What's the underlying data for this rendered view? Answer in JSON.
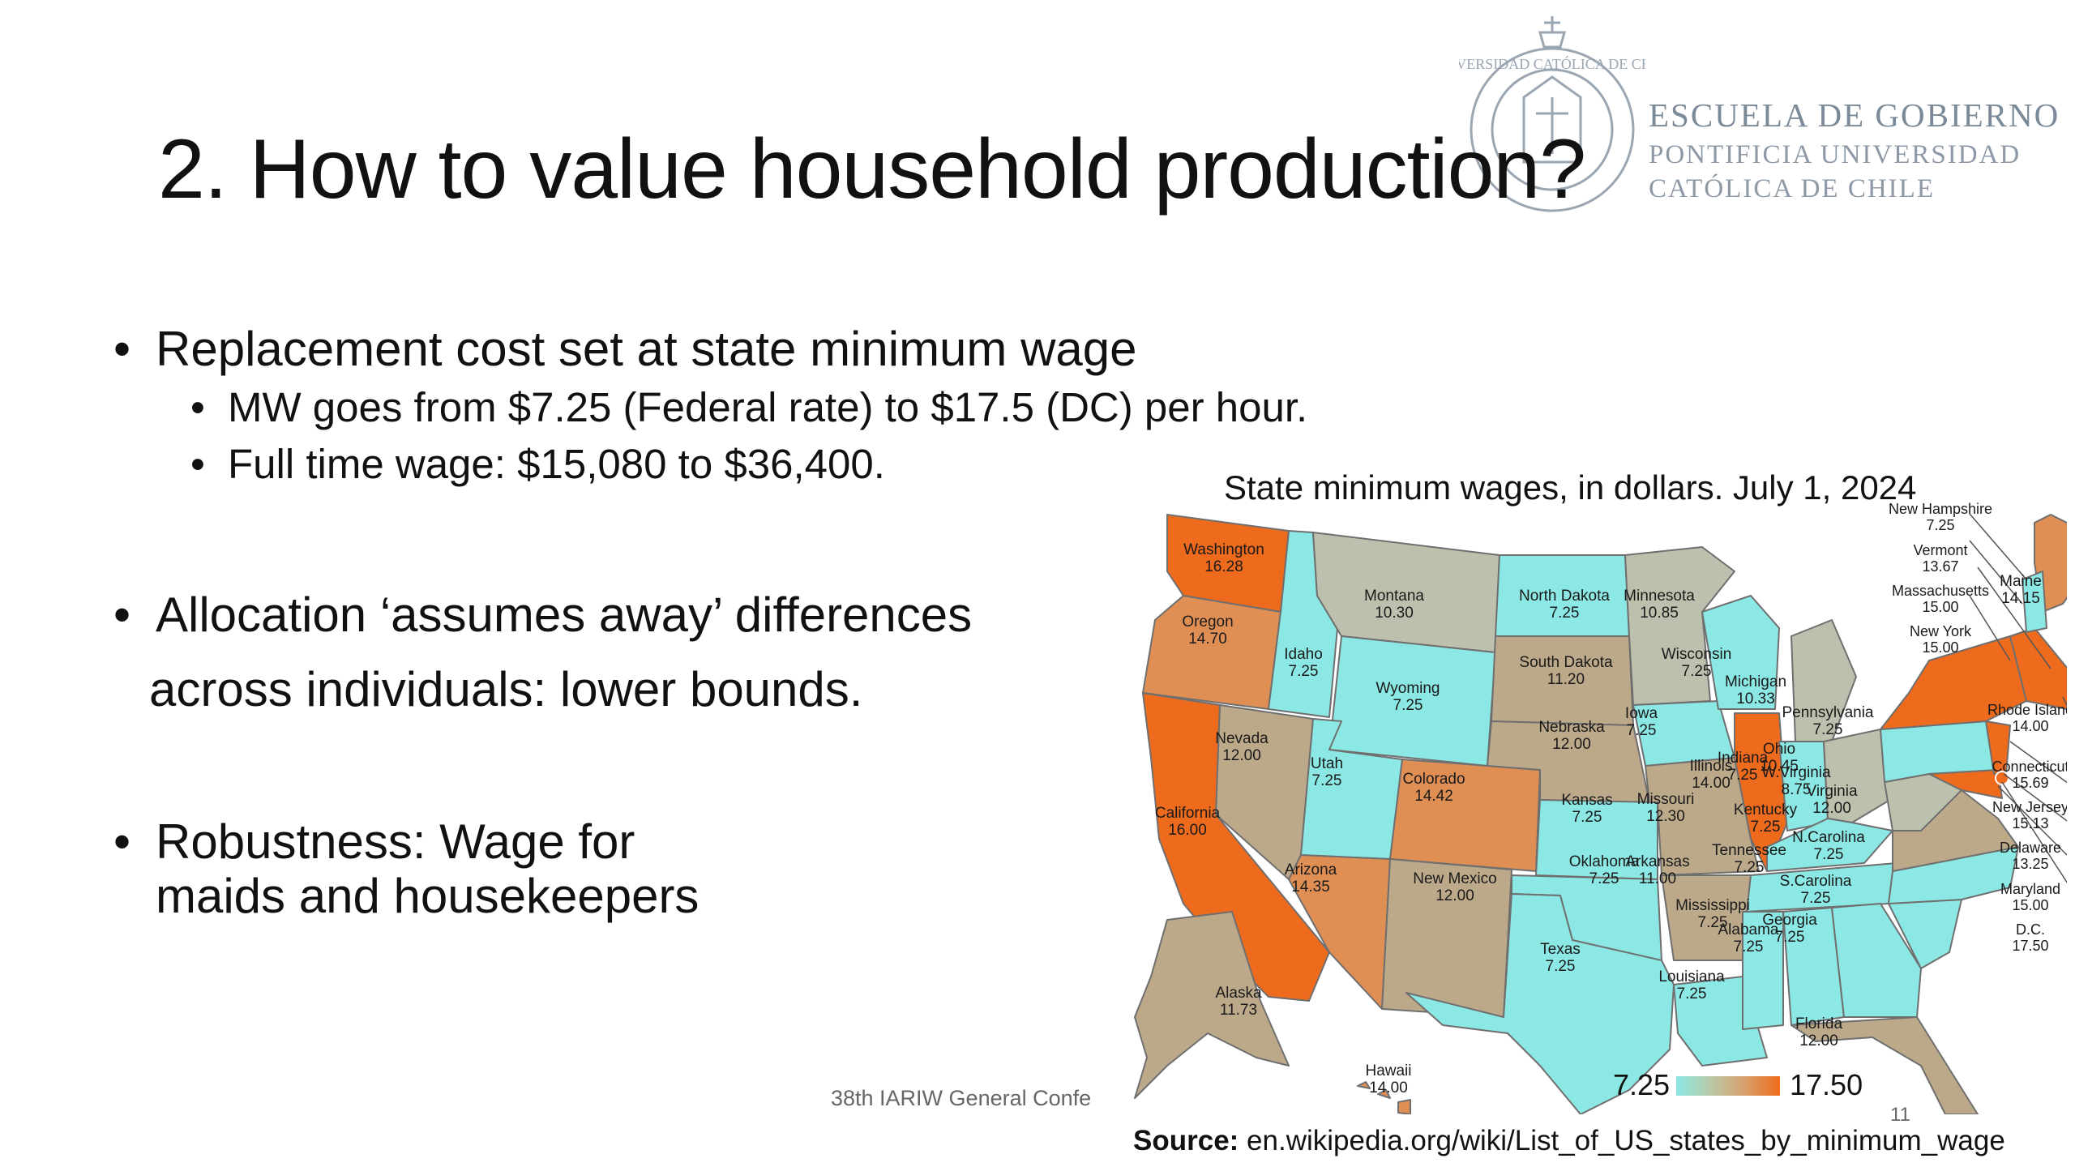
{
  "slide": {
    "title": "2. How to value household production?",
    "logo": {
      "line1": "ESCUELA DE GOBIERNO",
      "line2": "PONTIFICIA UNIVERSIDAD",
      "line3": "CATÓLICA DE CHILE",
      "seal_text": "UNIVERSIDAD CATÓLICA DE CHILE"
    },
    "bullets": [
      {
        "text": "Replacement cost set at state minimum wage",
        "level": 1
      },
      {
        "text": "MW goes from $7.25 (Federal rate) to $17.5 (DC) per hour.",
        "level": 2
      },
      {
        "text": "Full time wage: $15,080 to $36,400.",
        "level": 2
      },
      {
        "text": "Allocation ‘assumes away’ differences",
        "level": 1
      },
      {
        "text": "across individuals: lower bounds.",
        "level": 0
      },
      {
        "text": "Robustness: Wage for",
        "level": 1
      },
      {
        "text": "maids and housekeepers",
        "level": 0
      }
    ],
    "bullet_char": "•",
    "footer": "38th IARIW General Confe",
    "page_number": "11"
  },
  "map": {
    "title": "State minimum wages, in dollars. July 1, 2024",
    "legend": {
      "min": "7.25",
      "max": "17.50"
    },
    "colors": {
      "low": "#8ce8e4",
      "mid": "#bca98a",
      "high": "#ee6a1c",
      "border": "#6f6f6f"
    },
    "states": [
      {
        "name": "Washington",
        "value": "16.28"
      },
      {
        "name": "Oregon",
        "value": "14.70"
      },
      {
        "name": "California",
        "value": "16.00"
      },
      {
        "name": "Idaho",
        "value": "7.25"
      },
      {
        "name": "Nevada",
        "value": "12.00"
      },
      {
        "name": "Montana",
        "value": "10.30"
      },
      {
        "name": "Wyoming",
        "value": "7.25"
      },
      {
        "name": "Utah",
        "value": "7.25"
      },
      {
        "name": "Arizona",
        "value": "14.35"
      },
      {
        "name": "Colorado",
        "value": "14.42"
      },
      {
        "name": "New Mexico",
        "value": "12.00"
      },
      {
        "name": "North Dakota",
        "value": "7.25"
      },
      {
        "name": "South Dakota",
        "value": "11.20"
      },
      {
        "name": "Nebraska",
        "value": "12.00"
      },
      {
        "name": "Kansas",
        "value": "7.25"
      },
      {
        "name": "Oklahoma",
        "value": "7.25"
      },
      {
        "name": "Texas",
        "value": "7.25"
      },
      {
        "name": "Minnesota",
        "value": "10.85"
      },
      {
        "name": "Iowa",
        "value": "7.25"
      },
      {
        "name": "Missouri",
        "value": "12.30"
      },
      {
        "name": "Arkansas",
        "value": "11.00"
      },
      {
        "name": "Louisiana",
        "value": "7.25"
      },
      {
        "name": "Wisconsin",
        "value": "7.25"
      },
      {
        "name": "Illinois",
        "value": "14.00"
      },
      {
        "name": "Michigan",
        "value": "10.33"
      },
      {
        "name": "Indiana",
        "value": "7.25"
      },
      {
        "name": "Ohio",
        "value": "10.45"
      },
      {
        "name": "Kentucky",
        "value": "7.25"
      },
      {
        "name": "Tennessee",
        "value": "7.25"
      },
      {
        "name": "Mississippi",
        "value": "7.25"
      },
      {
        "name": "Alabama",
        "value": "7.25"
      },
      {
        "name": "Georgia",
        "value": "7.25"
      },
      {
        "name": "Florida",
        "value": "12.00"
      },
      {
        "name": "S.Carolina",
        "value": "7.25"
      },
      {
        "name": "N.Carolina",
        "value": "7.25"
      },
      {
        "name": "Virginia",
        "value": "12.00"
      },
      {
        "name": "W.Virginia",
        "value": "8.75"
      },
      {
        "name": "Pennsylvania",
        "value": "7.25"
      },
      {
        "name": "Maine",
        "value": "14.15"
      },
      {
        "name": "Alaska",
        "value": "11.73"
      },
      {
        "name": "Hawaii",
        "value": "14.00"
      }
    ],
    "northeast_callouts": [
      {
        "name": "New Hampshire",
        "value": "7.25"
      },
      {
        "name": "Vermont",
        "value": "13.67"
      },
      {
        "name": "Massachusetts",
        "value": "15.00"
      },
      {
        "name": "New York",
        "value": "15.00"
      },
      {
        "name": "Rhode Island",
        "value": "14.00"
      },
      {
        "name": "Connecticut",
        "value": "15.69"
      },
      {
        "name": "New Jersey",
        "value": "15.13"
      },
      {
        "name": "Delaware",
        "value": "13.25"
      },
      {
        "name": "Maryland",
        "value": "15.00"
      },
      {
        "name": "D.C.",
        "value": "17.50"
      }
    ],
    "source_label": "Source:",
    "source_url": "en.wikipedia.org/wiki/List_of_US_states_by_minimum_wage"
  }
}
